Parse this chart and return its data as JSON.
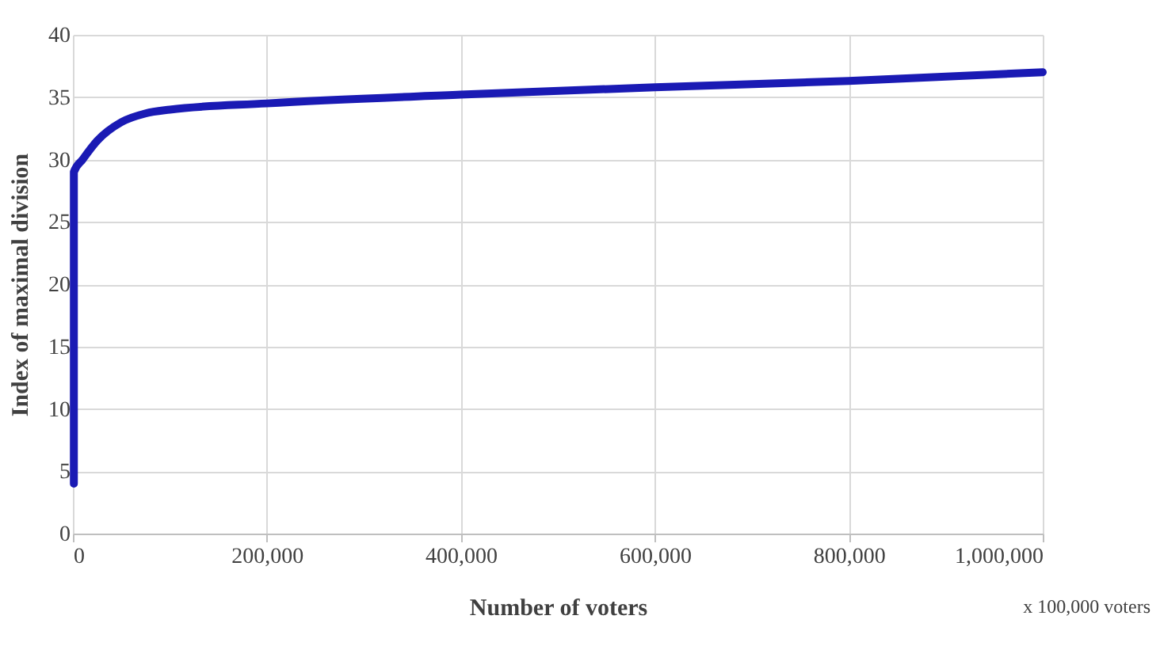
{
  "chart_data": {
    "type": "line",
    "xlabel": "Number  of voters",
    "ylabel": "Index  of maximal  division",
    "x": [
      1000,
      1000,
      10000,
      25000,
      50000,
      75000,
      100000,
      200000,
      400000,
      600000,
      800000,
      1000000
    ],
    "series": [
      {
        "color": "#1a1ab4",
        "values": [
          4,
          29,
          30,
          31.5,
          33,
          33.7,
          34,
          34.5,
          35.2,
          35.8,
          36.3,
          37
        ]
      }
    ],
    "xlim": [
      0,
      1000000
    ],
    "xticks": [
      {
        "value": 0,
        "label": "0"
      },
      {
        "value": 200000,
        "label": "200,000"
      },
      {
        "value": 400000,
        "label": "400,000"
      },
      {
        "value": 600000,
        "label": "600,000"
      },
      {
        "value": 800000,
        "label": "800,000"
      },
      {
        "value": 1000000,
        "label": "1,000,000"
      }
    ],
    "ylim": [
      0,
      40
    ],
    "yticks": [
      0,
      5,
      10,
      15,
      20,
      25,
      30,
      35,
      40
    ],
    "grid": true,
    "annotations": [
      "x 100,000 voters"
    ]
  }
}
